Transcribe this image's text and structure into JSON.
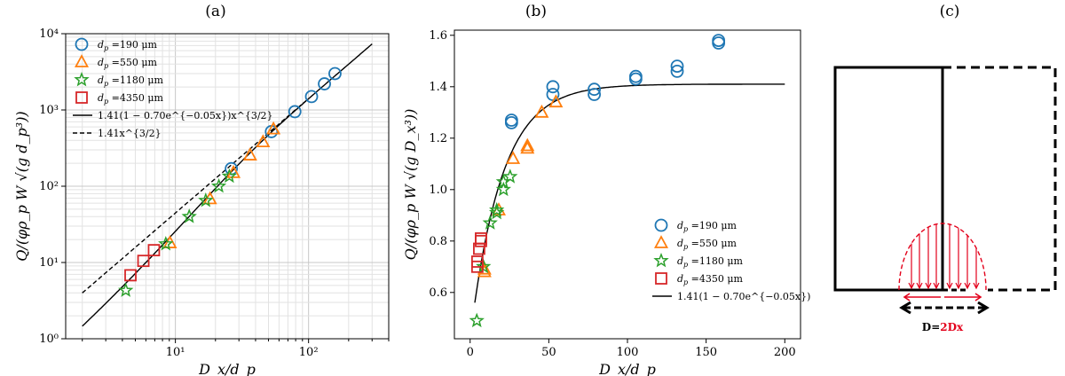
{
  "panels": {
    "a": "(a)",
    "b": "(b)",
    "c": "(c)"
  },
  "chart_data": [
    {
      "type": "scatter",
      "scale": "log-log",
      "xlabel": "D_x/d_p",
      "ylabel": "Q/(φρ_p W √(g d_p³))",
      "xlim": [
        1.5,
        400
      ],
      "ylim": [
        1,
        10000
      ],
      "xticks": [
        {
          "v": 10,
          "label": "10¹"
        },
        {
          "v": 100,
          "label": "10²"
        }
      ],
      "yticks": [
        {
          "v": 1,
          "label": "10⁰"
        },
        {
          "v": 10,
          "label": "10¹"
        },
        {
          "v": 100,
          "label": "10²"
        },
        {
          "v": 1000,
          "label": "10³"
        },
        {
          "v": 10000,
          "label": "10⁴"
        }
      ],
      "legend_position": "upper-left",
      "series": [
        {
          "name": "d_p =190 μm",
          "marker": "circle",
          "color": "#1f77b4",
          "x": [
            26.3,
            52.6,
            78.9,
            105.3,
            131.6,
            157.9
          ],
          "y": [
            170,
            520,
            950,
            1500,
            2200,
            3000
          ]
        },
        {
          "name": "d_p =550 μm",
          "marker": "triangle",
          "color": "#ff7f0e",
          "x": [
            9.1,
            18.2,
            27.3,
            36.4,
            45.5,
            54.5
          ],
          "y": [
            18,
            68,
            150,
            255,
            380,
            560
          ]
        },
        {
          "name": "d_p =1180 μm",
          "marker": "star",
          "color": "#2ca02c",
          "x": [
            4.24,
            8.47,
            12.7,
            16.9,
            21.2,
            25.4
          ],
          "y": [
            4.3,
            17.5,
            40,
            65,
            100,
            135
          ]
        },
        {
          "name": "d_p =4350 μm",
          "marker": "square",
          "color": "#d62728",
          "x": [
            4.6,
            5.75,
            6.9
          ],
          "y": [
            6.8,
            10.5,
            14.5
          ]
        }
      ],
      "curves": [
        {
          "name": "1.41(1 − 0.70e^{−0.05x})x^{3/2}",
          "style": "solid",
          "a": 1.41,
          "b": 0.7,
          "k": 0.05,
          "x_range": [
            2,
            300
          ]
        },
        {
          "name": "1.41x^{3/2}",
          "style": "dashed",
          "a": 1.41,
          "b": 0,
          "k": 0,
          "x_range": [
            2,
            100
          ]
        }
      ]
    },
    {
      "type": "scatter",
      "scale": "linear",
      "xlabel": "D_x/d_p",
      "ylabel": "Q/(φρ_p W √(g D_x³))",
      "xlim": [
        -10,
        210
      ],
      "ylim": [
        0.42,
        1.62
      ],
      "xticks": [
        {
          "v": 0,
          "label": "0"
        },
        {
          "v": 50,
          "label": "50"
        },
        {
          "v": 100,
          "label": "100"
        },
        {
          "v": 150,
          "label": "150"
        },
        {
          "v": 200,
          "label": "200"
        }
      ],
      "yticks": [
        {
          "v": 0.6,
          "label": "0.6"
        },
        {
          "v": 0.8,
          "label": "0.8"
        },
        {
          "v": 1.0,
          "label": "1.0"
        },
        {
          "v": 1.2,
          "label": "1.2"
        },
        {
          "v": 1.4,
          "label": "1.4"
        },
        {
          "v": 1.6,
          "label": "1.6"
        }
      ],
      "legend_position": "lower-right",
      "series": [
        {
          "name": "d_p =190 μm",
          "marker": "circle",
          "color": "#1f77b4",
          "x": [
            26.3,
            26.3,
            52.6,
            52.6,
            78.9,
            78.9,
            105.3,
            105.3,
            131.6,
            131.6,
            157.9,
            157.9
          ],
          "y": [
            1.26,
            1.27,
            1.37,
            1.4,
            1.37,
            1.39,
            1.43,
            1.44,
            1.46,
            1.48,
            1.57,
            1.58
          ]
        },
        {
          "name": "d_p =550 μm",
          "marker": "triangle",
          "color": "#ff7f0e",
          "x": [
            9.1,
            9.1,
            18.2,
            27.3,
            36.4,
            36.4,
            45.5,
            54.5
          ],
          "y": [
            0.68,
            0.69,
            0.92,
            1.12,
            1.16,
            1.17,
            1.3,
            1.34
          ]
        },
        {
          "name": "d_p =1180 μm",
          "marker": "star",
          "color": "#2ca02c",
          "x": [
            4.24,
            8.47,
            12.7,
            16.9,
            16.9,
            21.2,
            21.2,
            25.4
          ],
          "y": [
            0.49,
            0.7,
            0.87,
            0.91,
            0.92,
            1.0,
            1.03,
            1.05
          ]
        },
        {
          "name": "d_p =4350 μm",
          "marker": "square",
          "color": "#d62728",
          "x": [
            4.6,
            4.6,
            5.75,
            6.9,
            6.9
          ],
          "y": [
            0.7,
            0.72,
            0.77,
            0.8,
            0.81
          ]
        }
      ],
      "curves": [
        {
          "name": "1.41(1 − 0.70e^{−0.05x})",
          "style": "solid",
          "a": 1.41,
          "b": 0.7,
          "k": 0.05,
          "x_range": [
            3,
            200
          ]
        }
      ]
    }
  ],
  "diagram_c": {
    "label": "D=2Dx",
    "label_prefix": "D=",
    "label_highlight": "2Dx",
    "highlight_color": "#e3001b"
  }
}
